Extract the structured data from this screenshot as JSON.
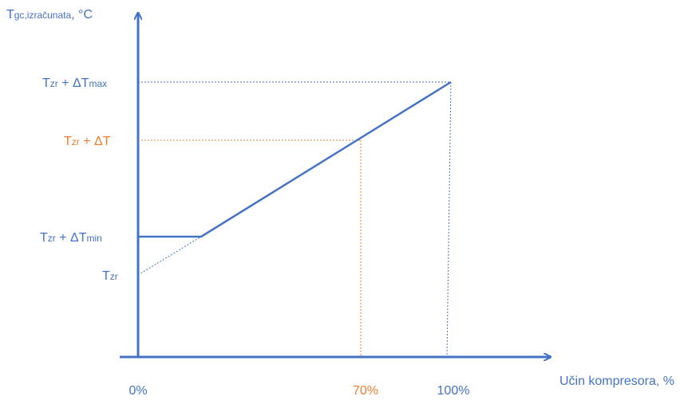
{
  "colors": {
    "axis": "#4472c4",
    "accent": "#ed7d31",
    "text_blue": "#4472c4"
  },
  "y_axis": {
    "label_main": "T",
    "label_sub": "gc,izračunata",
    "label_unit": ", °C"
  },
  "x_axis": {
    "label": "Učin kompresora, %",
    "ticks": {
      "zero": "0%",
      "seventy": "70%",
      "hundred": "100%"
    }
  },
  "y_levels": {
    "max": {
      "base": "T",
      "sub1": "zr",
      "mid": " + ΔT",
      "sub2": "max"
    },
    "mid": {
      "base": "T",
      "sub1": "zr",
      "mid": " + ΔT",
      "sub2": ""
    },
    "min": {
      "base": "T",
      "sub1": "zr",
      "mid": " + ΔT",
      "sub2": "min"
    },
    "zr": {
      "base": "T",
      "sub1": "zr"
    }
  }
}
